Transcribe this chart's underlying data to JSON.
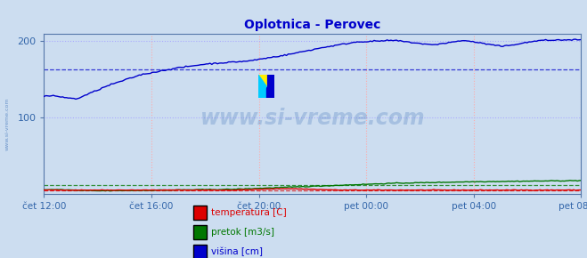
{
  "title": "Oplotnica - Perovec",
  "title_color": "#0000cc",
  "bg_color": "#ccddf0",
  "plot_bg_color": "#ccddf0",
  "ylim": [
    0,
    210
  ],
  "ytick_vals": [
    100,
    200
  ],
  "ytick_labels": [
    "100",
    "200"
  ],
  "xlabel_ticks": [
    "čet 12:00",
    "čet 16:00",
    "čet 20:00",
    "pet 00:00",
    "pet 04:00",
    "pet 08:00"
  ],
  "x_tick_positions": [
    0.0,
    0.2,
    0.4,
    0.6,
    0.8,
    1.0
  ],
  "grid_color_vertical": "#ffaaaa",
  "grid_color_horizontal": "#aaaaff",
  "watermark": "www.si-vreme.com",
  "watermark_color": "#4477bb",
  "watermark_alpha": 0.28,
  "line_temperatura_color": "#dd0000",
  "line_pretok_color": "#007700",
  "line_visina_color": "#0000cc",
  "avg_temperatura": 4.5,
  "avg_pretok": 11,
  "avg_visina": 163,
  "legend_labels": [
    "temperatura [C]",
    "pretok [m3/s]",
    "višina [cm]"
  ],
  "legend_colors": [
    "#dd0000",
    "#007700",
    "#0000cc"
  ],
  "n_points": 289,
  "sidebar_text": "www.si-vreme.com",
  "sidebar_color": "#4477bb"
}
